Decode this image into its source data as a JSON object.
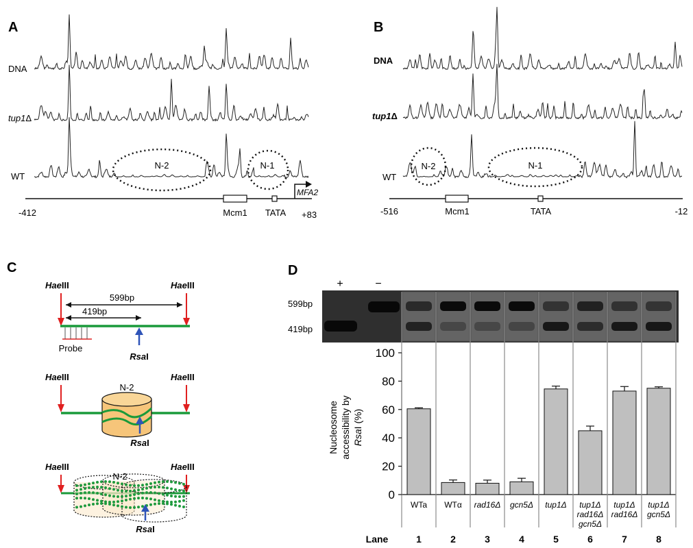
{
  "panel_a": {
    "letter": "A",
    "tracks": [
      {
        "label_main": "DNA",
        "label_suffix": ""
      },
      {
        "label_main": "tup1",
        "label_suffix": "Δ"
      },
      {
        "label_main": "WT",
        "label_suffix": ""
      }
    ],
    "circles": [
      "N-2",
      "N-1"
    ],
    "left_coord": "-412",
    "right_coord": "+83",
    "features": [
      "Mcm1",
      "TATA"
    ],
    "gene": "MFA2"
  },
  "panel_b": {
    "letter": "B",
    "tracks": [
      {
        "label_main": "DNA",
        "label_suffix": ""
      },
      {
        "label_main": "tup1",
        "label_suffix": "Δ"
      },
      {
        "label_main": "WT",
        "label_suffix": ""
      }
    ],
    "circles": [
      "N-2",
      "N-1"
    ],
    "left_coord": "-516",
    "right_coord": "-12",
    "features": [
      "Mcm1",
      "TATA"
    ]
  },
  "panel_c": {
    "letter": "C",
    "enzyme_prefix": "Hae",
    "enzyme_suffix": "III",
    "site_prefix": "Rsa",
    "site_suffix": "I",
    "len_long": "599bp",
    "len_short": "419bp",
    "probe": "Probe",
    "nucleosome": "N-2"
  },
  "panel_d": {
    "letter": "D",
    "gel_plus": "+",
    "gel_minus": "−",
    "band_top": "599bp",
    "band_bottom": "419bp",
    "ylabel_line1": "Nucleosome",
    "ylabel_line2": "accessibility by",
    "ylabel_line3_ital": "Rsa",
    "ylabel_line3_rest": "I (%)",
    "lane_title": "Lane",
    "lane_numbers": [
      "1",
      "2",
      "3",
      "4",
      "5",
      "6",
      "7",
      "8"
    ]
  },
  "chart_data": {
    "type": "bar",
    "ylim": [
      0,
      100
    ],
    "yticks": [
      0,
      20,
      40,
      60,
      80,
      100
    ],
    "categories": [
      [
        "WTa"
      ],
      [
        "WTα"
      ],
      [
        "rad16Δ"
      ],
      [
        "gcn5Δ"
      ],
      [
        "tup1Δ"
      ],
      [
        "tup1Δ",
        "rad16Δ",
        "gcn5Δ"
      ],
      [
        "tup1Δ",
        "rad16Δ"
      ],
      [
        "tup1Δ",
        "gcn5Δ"
      ]
    ],
    "italic_categories": [
      false,
      false,
      true,
      true,
      true,
      true,
      true,
      true
    ],
    "values": [
      60.5,
      8.5,
      8,
      9,
      74.5,
      45,
      73,
      75
    ],
    "errors": [
      0.7,
      1.8,
      2.2,
      2.5,
      2,
      3.3,
      3.2,
      1
    ],
    "bar_color": "#bfbfbf"
  }
}
